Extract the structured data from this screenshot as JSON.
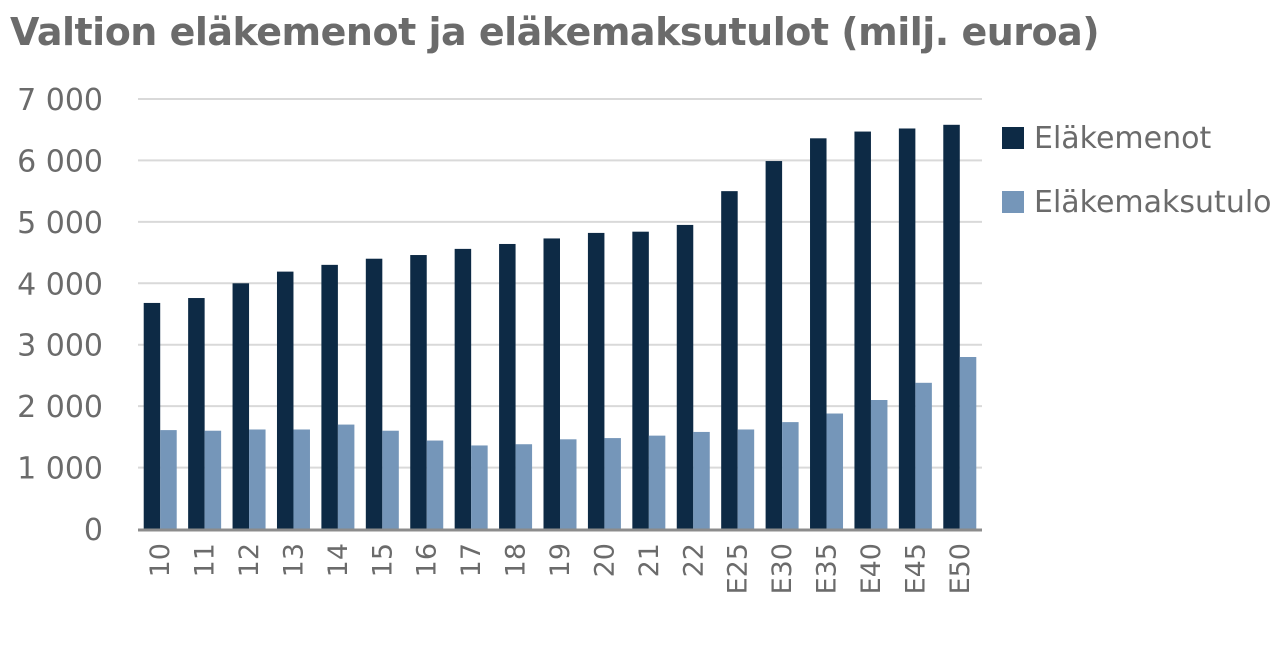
{
  "chart_data": {
    "type": "bar",
    "title": "Valtion eläkemenot ja eläkemaksutulot (milj. euroa)",
    "categories": [
      "10",
      "11",
      "12",
      "13",
      "14",
      "15",
      "16",
      "17",
      "18",
      "19",
      "20",
      "21",
      "22",
      "E25",
      "E30",
      "E35",
      "E40",
      "E45",
      "E50"
    ],
    "series": [
      {
        "name": "Eläkemenot",
        "color": "#0d2a45",
        "values": [
          3680,
          3760,
          4000,
          4190,
          4300,
          4400,
          4460,
          4560,
          4640,
          4730,
          4820,
          4840,
          4950,
          5500,
          5990,
          6360,
          6470,
          6520,
          6580
        ]
      },
      {
        "name": "Eläkemaksutulo",
        "color": "#7596b9",
        "values": [
          1610,
          1600,
          1620,
          1620,
          1700,
          1600,
          1440,
          1360,
          1380,
          1460,
          1480,
          1520,
          1580,
          1620,
          1740,
          1880,
          2100,
          2380,
          2800
        ]
      }
    ],
    "ylim": [
      0,
      7000
    ],
    "yticks": [
      0,
      1000,
      2000,
      3000,
      4000,
      5000,
      6000,
      7000
    ],
    "ytick_labels": [
      "0",
      "1 000",
      "2 000",
      "3 000",
      "4 000",
      "5 000",
      "6 000",
      "7 000"
    ],
    "grid": true,
    "legend": "right"
  }
}
